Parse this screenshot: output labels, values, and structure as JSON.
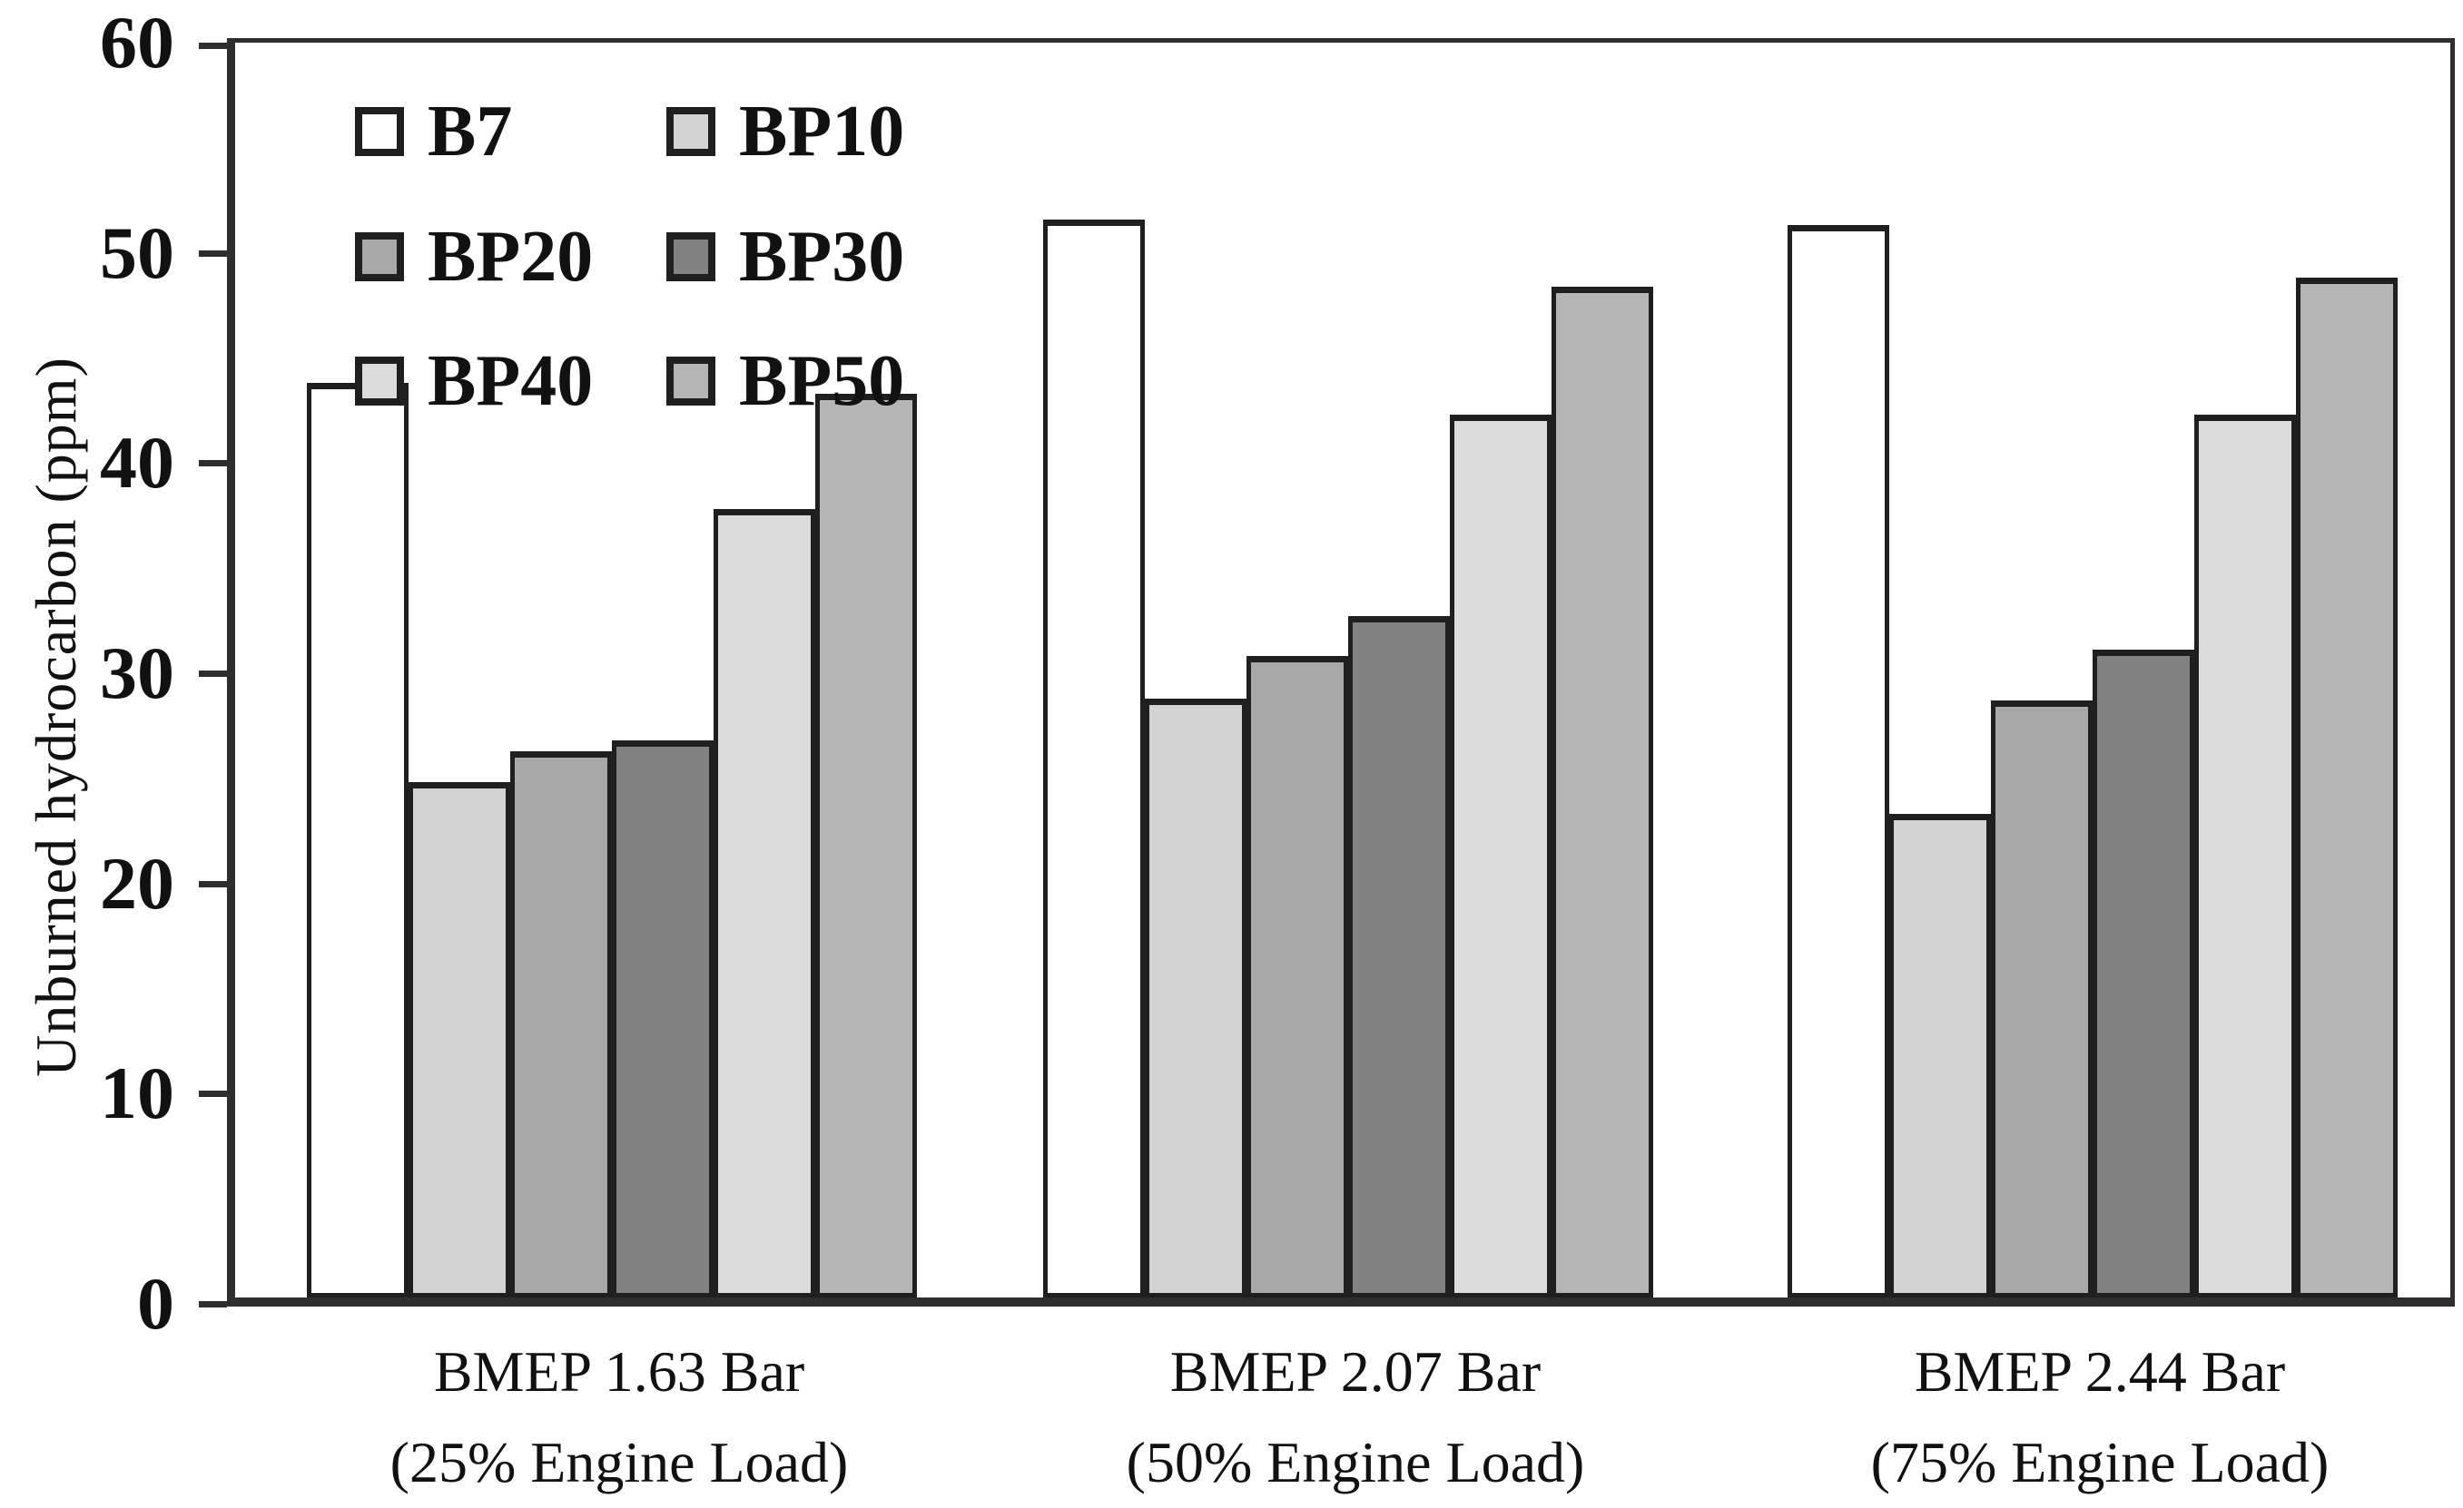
{
  "chart_data": {
    "type": "bar",
    "title": "",
    "xlabel": "",
    "ylabel": "Unburned hydrocarbon (ppm)",
    "ylim": [
      0,
      60
    ],
    "yticks": [
      0,
      10,
      20,
      30,
      40,
      50,
      60
    ],
    "grid": false,
    "legend_position": "top-left-inside",
    "groups": [
      {
        "label_line1": "BMEP 1.63 Bar",
        "label_line2": "(25% Engine Load)"
      },
      {
        "label_line1": "BMEP 2.07 Bar",
        "label_line2": "(50% Engine Load)"
      },
      {
        "label_line1": "BMEP 2.44 Bar",
        "label_line2": "(75% Engine Load)"
      }
    ],
    "series": [
      {
        "name": "B7",
        "color": "#ffffff",
        "values": [
          43.5,
          51.3,
          51.0
        ]
      },
      {
        "name": "BP10",
        "color": "#d3d3d3",
        "values": [
          24.5,
          28.5,
          23.0
        ]
      },
      {
        "name": "BP20",
        "color": "#a8a8a8",
        "values": [
          26.0,
          30.5,
          28.4
        ]
      },
      {
        "name": "BP30",
        "color": "#828282",
        "values": [
          26.5,
          32.4,
          30.8
        ]
      },
      {
        "name": "BP40",
        "color": "#dcdcdc",
        "values": [
          37.5,
          42.0,
          42.0
        ]
      },
      {
        "name": "BP50",
        "color": "#b5b5b5",
        "values": [
          43.0,
          48.1,
          48.5
        ]
      }
    ],
    "colors": {
      "axis": "#2e2e2e",
      "bar_outline": "#1f1f1f",
      "text": "#111111",
      "background": "#ffffff"
    }
  }
}
